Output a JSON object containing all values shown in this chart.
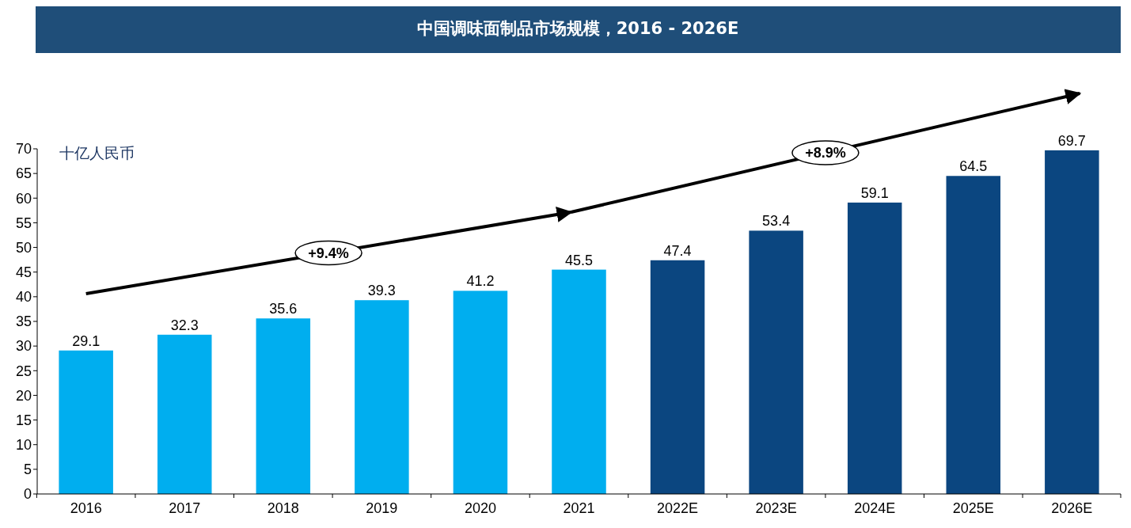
{
  "chart_data": {
    "type": "bar",
    "title": "中国调味面制品市场规模，2016 - 2026E",
    "ylabel": "十亿人民币",
    "categories": [
      "2016",
      "2017",
      "2018",
      "2019",
      "2020",
      "2021",
      "2022E",
      "2023E",
      "2024E",
      "2025E",
      "2026E"
    ],
    "values": [
      29.1,
      32.3,
      35.6,
      39.3,
      41.2,
      45.5,
      47.4,
      53.4,
      59.1,
      64.5,
      69.7
    ],
    "colors": [
      "#00aeef",
      "#00aeef",
      "#00aeef",
      "#00aeef",
      "#00aeef",
      "#00aeef",
      "#0b4680",
      "#0b4680",
      "#0b4680",
      "#0b4680",
      "#0b4680"
    ],
    "ylim": [
      0,
      70
    ],
    "yticks": [
      0,
      5,
      10,
      15,
      20,
      25,
      30,
      35,
      40,
      45,
      50,
      55,
      60,
      65,
      70
    ],
    "data_labels": true,
    "grid": false,
    "annotations": [
      "+9.4%",
      "+8.9%"
    ]
  }
}
